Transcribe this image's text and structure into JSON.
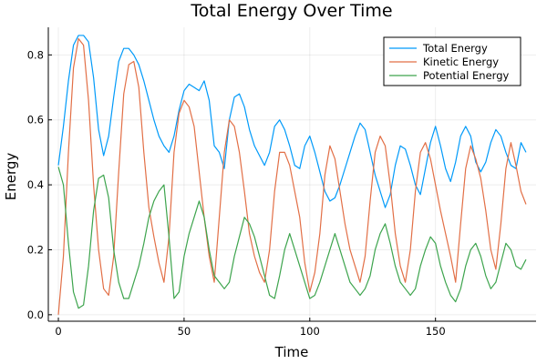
{
  "chart_data": {
    "type": "line",
    "title": "Total Energy Over Time",
    "xlabel": "Time",
    "ylabel": "Energy",
    "xlim": [
      -4,
      190
    ],
    "ylim": [
      -0.02,
      0.885
    ],
    "xticks": [
      0,
      50,
      100,
      150
    ],
    "xtick_labels": [
      "0",
      "50",
      "100",
      "150"
    ],
    "yticks": [
      0.0,
      0.2,
      0.4,
      0.6,
      0.8
    ],
    "ytick_labels": [
      "0.0",
      "0.2",
      "0.4",
      "0.6",
      "0.8"
    ],
    "grid": true,
    "legend_position": "top-right",
    "series": [
      {
        "name": "Total Energy",
        "color": "#009af9",
        "x": [
          0,
          2,
          4,
          6,
          8,
          10,
          12,
          14,
          16,
          18,
          20,
          22,
          24,
          26,
          28,
          30,
          32,
          34,
          36,
          38,
          40,
          42,
          44,
          46,
          48,
          50,
          52,
          54,
          56,
          58,
          60,
          62,
          64,
          66,
          68,
          70,
          72,
          74,
          76,
          78,
          80,
          82,
          84,
          86,
          88,
          90,
          92,
          94,
          96,
          98,
          100,
          102,
          104,
          106,
          108,
          110,
          112,
          114,
          116,
          118,
          120,
          122,
          124,
          126,
          128,
          130,
          132,
          134,
          136,
          138,
          140,
          142,
          144,
          146,
          148,
          150,
          152,
          154,
          156,
          158,
          160,
          162,
          164,
          166,
          168,
          170,
          172,
          174,
          176,
          178,
          180,
          182,
          184,
          186
        ],
        "values": [
          0.46,
          0.58,
          0.72,
          0.83,
          0.86,
          0.86,
          0.84,
          0.73,
          0.57,
          0.49,
          0.55,
          0.67,
          0.78,
          0.82,
          0.82,
          0.8,
          0.77,
          0.72,
          0.66,
          0.6,
          0.55,
          0.52,
          0.5,
          0.55,
          0.63,
          0.69,
          0.71,
          0.7,
          0.69,
          0.72,
          0.66,
          0.52,
          0.5,
          0.45,
          0.6,
          0.67,
          0.68,
          0.64,
          0.57,
          0.52,
          0.49,
          0.46,
          0.5,
          0.58,
          0.6,
          0.57,
          0.52,
          0.46,
          0.45,
          0.52,
          0.55,
          0.5,
          0.44,
          0.38,
          0.35,
          0.36,
          0.4,
          0.45,
          0.5,
          0.55,
          0.59,
          0.57,
          0.5,
          0.43,
          0.38,
          0.33,
          0.37,
          0.46,
          0.52,
          0.51,
          0.46,
          0.4,
          0.37,
          0.45,
          0.53,
          0.58,
          0.52,
          0.45,
          0.41,
          0.47,
          0.55,
          0.58,
          0.55,
          0.47,
          0.44,
          0.47,
          0.53,
          0.57,
          0.55,
          0.5,
          0.46,
          0.45,
          0.53,
          0.5
        ]
      },
      {
        "name": "Kinetic Energy",
        "color": "#e26f46",
        "x": [
          0,
          2,
          4,
          6,
          8,
          10,
          12,
          14,
          16,
          18,
          20,
          22,
          24,
          26,
          28,
          30,
          32,
          34,
          36,
          38,
          40,
          42,
          44,
          46,
          48,
          50,
          52,
          54,
          56,
          58,
          60,
          62,
          64,
          66,
          68,
          70,
          72,
          74,
          76,
          78,
          80,
          82,
          84,
          86,
          88,
          90,
          92,
          94,
          96,
          98,
          100,
          102,
          104,
          106,
          108,
          110,
          112,
          114,
          116,
          118,
          120,
          122,
          124,
          126,
          128,
          130,
          132,
          134,
          136,
          138,
          140,
          142,
          144,
          146,
          148,
          150,
          152,
          154,
          156,
          158,
          160,
          162,
          164,
          166,
          168,
          170,
          172,
          174,
          176,
          178,
          180,
          182,
          184,
          186
        ],
        "values": [
          0.0,
          0.18,
          0.5,
          0.76,
          0.85,
          0.83,
          0.66,
          0.4,
          0.2,
          0.08,
          0.06,
          0.18,
          0.44,
          0.68,
          0.77,
          0.78,
          0.7,
          0.5,
          0.33,
          0.24,
          0.16,
          0.1,
          0.24,
          0.5,
          0.62,
          0.66,
          0.64,
          0.58,
          0.44,
          0.3,
          0.18,
          0.1,
          0.3,
          0.5,
          0.6,
          0.58,
          0.5,
          0.38,
          0.25,
          0.18,
          0.13,
          0.1,
          0.2,
          0.38,
          0.5,
          0.5,
          0.46,
          0.38,
          0.3,
          0.16,
          0.07,
          0.13,
          0.25,
          0.43,
          0.52,
          0.48,
          0.38,
          0.28,
          0.2,
          0.15,
          0.1,
          0.18,
          0.35,
          0.5,
          0.55,
          0.52,
          0.4,
          0.25,
          0.15,
          0.1,
          0.2,
          0.38,
          0.5,
          0.53,
          0.48,
          0.4,
          0.32,
          0.25,
          0.18,
          0.1,
          0.28,
          0.45,
          0.52,
          0.48,
          0.42,
          0.32,
          0.2,
          0.14,
          0.28,
          0.45,
          0.53,
          0.46,
          0.38,
          0.34
        ]
      },
      {
        "name": "Potential Energy",
        "color": "#3da44d",
        "x": [
          0,
          2,
          4,
          6,
          8,
          10,
          12,
          14,
          16,
          18,
          20,
          22,
          24,
          26,
          28,
          30,
          32,
          34,
          36,
          38,
          40,
          42,
          44,
          46,
          48,
          50,
          52,
          54,
          56,
          58,
          60,
          62,
          64,
          66,
          68,
          70,
          72,
          74,
          76,
          78,
          80,
          82,
          84,
          86,
          88,
          90,
          92,
          94,
          96,
          98,
          100,
          102,
          104,
          106,
          108,
          110,
          112,
          114,
          116,
          118,
          120,
          122,
          124,
          126,
          128,
          130,
          132,
          134,
          136,
          138,
          140,
          142,
          144,
          146,
          148,
          150,
          152,
          154,
          156,
          158,
          160,
          162,
          164,
          166,
          168,
          170,
          172,
          174,
          176,
          178,
          180,
          182,
          184,
          186
        ],
        "values": [
          0.455,
          0.4,
          0.22,
          0.07,
          0.02,
          0.03,
          0.15,
          0.32,
          0.42,
          0.43,
          0.36,
          0.2,
          0.1,
          0.05,
          0.05,
          0.1,
          0.15,
          0.22,
          0.3,
          0.35,
          0.38,
          0.4,
          0.24,
          0.05,
          0.07,
          0.18,
          0.25,
          0.3,
          0.35,
          0.3,
          0.2,
          0.12,
          0.1,
          0.08,
          0.1,
          0.18,
          0.24,
          0.3,
          0.28,
          0.24,
          0.18,
          0.12,
          0.06,
          0.05,
          0.12,
          0.2,
          0.25,
          0.2,
          0.15,
          0.1,
          0.05,
          0.06,
          0.1,
          0.15,
          0.2,
          0.25,
          0.2,
          0.15,
          0.1,
          0.08,
          0.06,
          0.08,
          0.12,
          0.2,
          0.25,
          0.28,
          0.22,
          0.15,
          0.1,
          0.08,
          0.06,
          0.08,
          0.15,
          0.2,
          0.24,
          0.22,
          0.15,
          0.1,
          0.06,
          0.04,
          0.08,
          0.15,
          0.2,
          0.22,
          0.18,
          0.12,
          0.08,
          0.1,
          0.16,
          0.22,
          0.2,
          0.15,
          0.14,
          0.17
        ]
      }
    ]
  }
}
